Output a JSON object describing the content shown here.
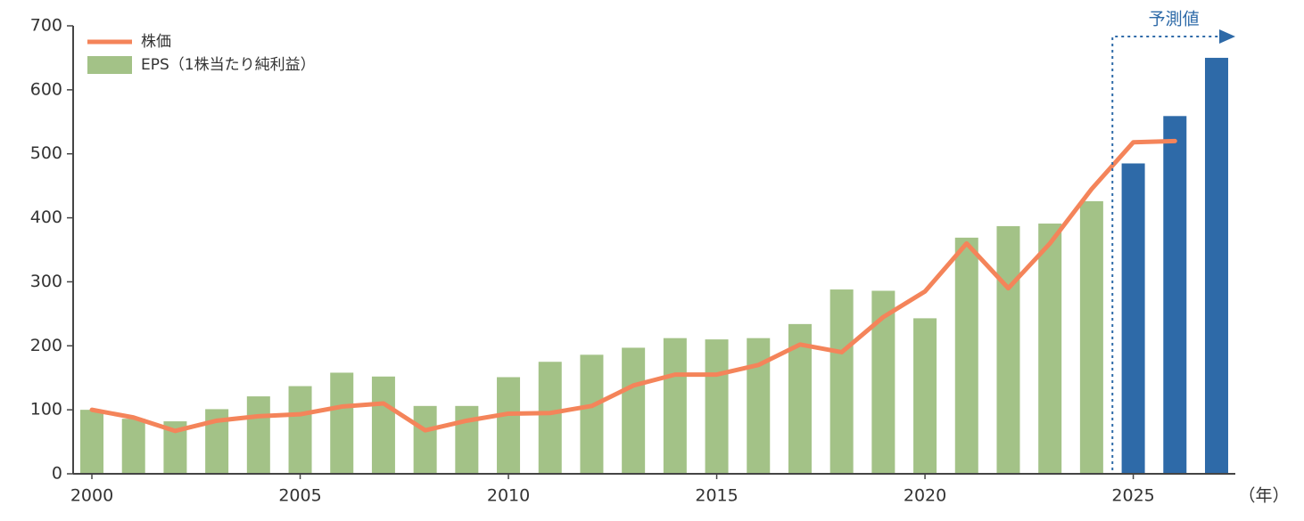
{
  "chart_data": {
    "type": "bar-line",
    "x": [
      2000,
      2001,
      2002,
      2003,
      2004,
      2005,
      2006,
      2007,
      2008,
      2009,
      2010,
      2011,
      2012,
      2013,
      2014,
      2015,
      2016,
      2017,
      2018,
      2019,
      2020,
      2021,
      2022,
      2023,
      2024,
      2025,
      2026,
      2027
    ],
    "series": [
      {
        "name": "株価",
        "type": "line",
        "color": "#f4845a",
        "values": [
          100,
          88,
          67,
          83,
          90,
          93,
          105,
          110,
          68,
          83,
          94,
          95,
          106,
          138,
          155,
          155,
          170,
          202,
          190,
          245,
          285,
          360,
          290,
          360,
          445,
          518,
          520,
          null
        ]
      },
      {
        "name": "EPS（1株当たり純利益）",
        "type": "bar",
        "color": "#a3c287",
        "values": [
          100,
          86,
          82,
          101,
          121,
          137,
          158,
          152,
          106,
          106,
          151,
          175,
          186,
          197,
          212,
          210,
          212,
          234,
          288,
          286,
          243,
          369,
          387,
          391,
          426,
          485,
          559,
          650
        ]
      }
    ],
    "forecast": {
      "label": "予測値",
      "from": 2025,
      "color": "#2e6aa8"
    },
    "x_unit": "（年）",
    "xlim": [
      1999.55,
      2027.45
    ],
    "xticks": [
      2000,
      2005,
      2010,
      2015,
      2020,
      2025
    ],
    "ylim": [
      0,
      700
    ],
    "yticks": [
      0,
      100,
      200,
      300,
      400,
      500,
      600,
      700
    ],
    "legend": "top-left"
  }
}
